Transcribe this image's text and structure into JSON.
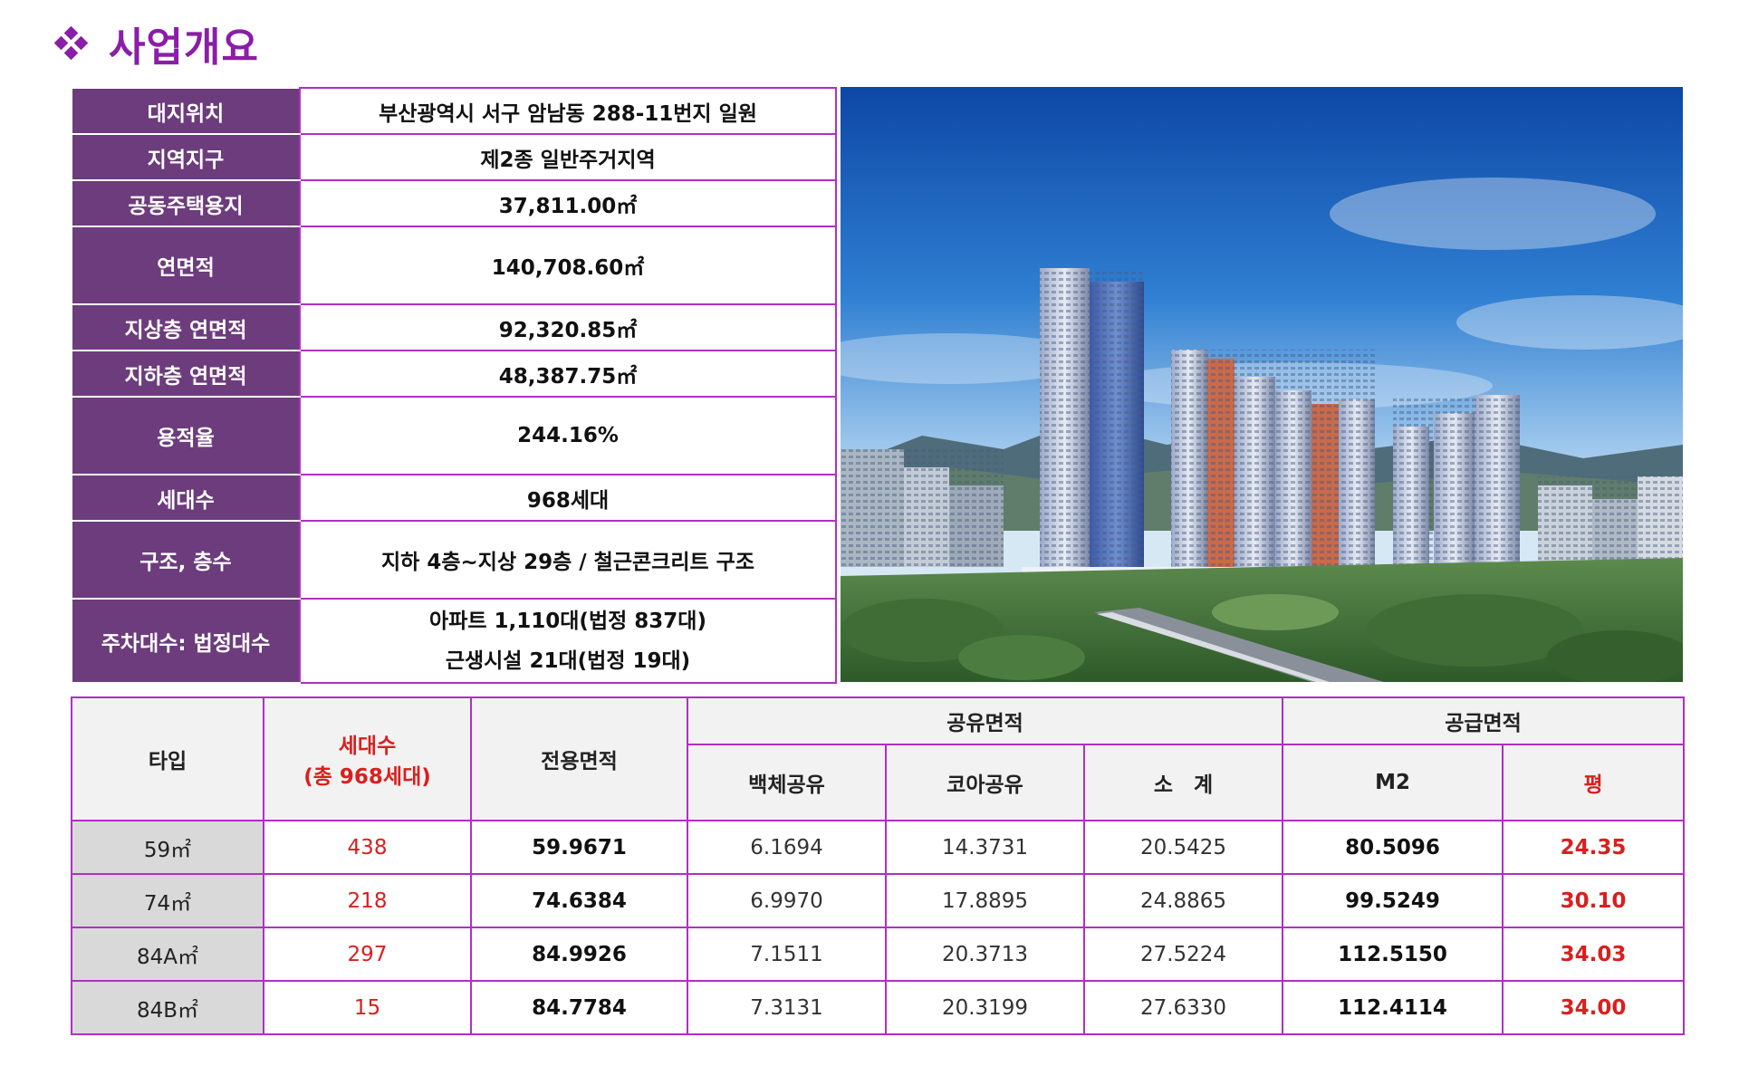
{
  "title": "사업개요",
  "info": {
    "rows": [
      {
        "label": "대지위치",
        "value": "부산광역시 서구 암남동 288-11번지 일원"
      },
      {
        "label": "지역지구",
        "value": "제2종 일반주거지역"
      },
      {
        "label": "공동주택용지",
        "value": "37,811.00㎡"
      },
      {
        "label": "연면적",
        "value": "140,708.60㎡"
      },
      {
        "label": "지상층 연면적",
        "value": "92,320.85㎡"
      },
      {
        "label": "지하층 연면적",
        "value": "48,387.75㎡"
      },
      {
        "label": "용적율",
        "value": "244.16%"
      },
      {
        "label": "세대수",
        "value": "968세대"
      },
      {
        "label": "구조, 층수",
        "value": "지하 4층~지상 29층 / 철근콘크리트 구조"
      },
      {
        "label": "주차대수: 법정대수",
        "value_line1": "아파트 1,110대(법정 837대)",
        "value_line2": "근생시설 21대(법정 19대)"
      }
    ]
  },
  "units": {
    "headers": {
      "type": "타입",
      "households_line1": "세대수",
      "households_line2": "(총 968세대)",
      "exclusive_area": "전용면적",
      "shared_area": "공유면적",
      "supply_area": "공급면적",
      "wall_shared": "백체공유",
      "core_shared": "코아공유",
      "subtotal": "소　계",
      "m2": "M2",
      "pyeong": "평"
    },
    "rows": [
      {
        "type": "59㎡",
        "households": "438",
        "exclusive": "59.9671",
        "wall": "6.1694",
        "core": "14.3731",
        "subtotal": "20.5425",
        "m2": "80.5096",
        "pyeong": "24.35"
      },
      {
        "type": "74㎡",
        "households": "218",
        "exclusive": "74.6384",
        "wall": "6.9970",
        "core": "17.8895",
        "subtotal": "24.8865",
        "m2": "99.5249",
        "pyeong": "30.10"
      },
      {
        "type": "84A㎡",
        "households": "297",
        "exclusive": "84.9926",
        "wall": "7.1511",
        "core": "20.3713",
        "subtotal": "27.5224",
        "m2": "112.5150",
        "pyeong": "34.03"
      },
      {
        "type": "84B㎡",
        "households": "15",
        "exclusive": "84.7784",
        "wall": "7.3131",
        "core": "20.3199",
        "subtotal": "27.6330",
        "m2": "112.4114",
        "pyeong": "34.00"
      }
    ]
  },
  "colors": {
    "accent": "#8a1ea8",
    "label_bg": "#6c3c7c",
    "border": "#b02fc4",
    "highlight_red": "#d8201f"
  }
}
